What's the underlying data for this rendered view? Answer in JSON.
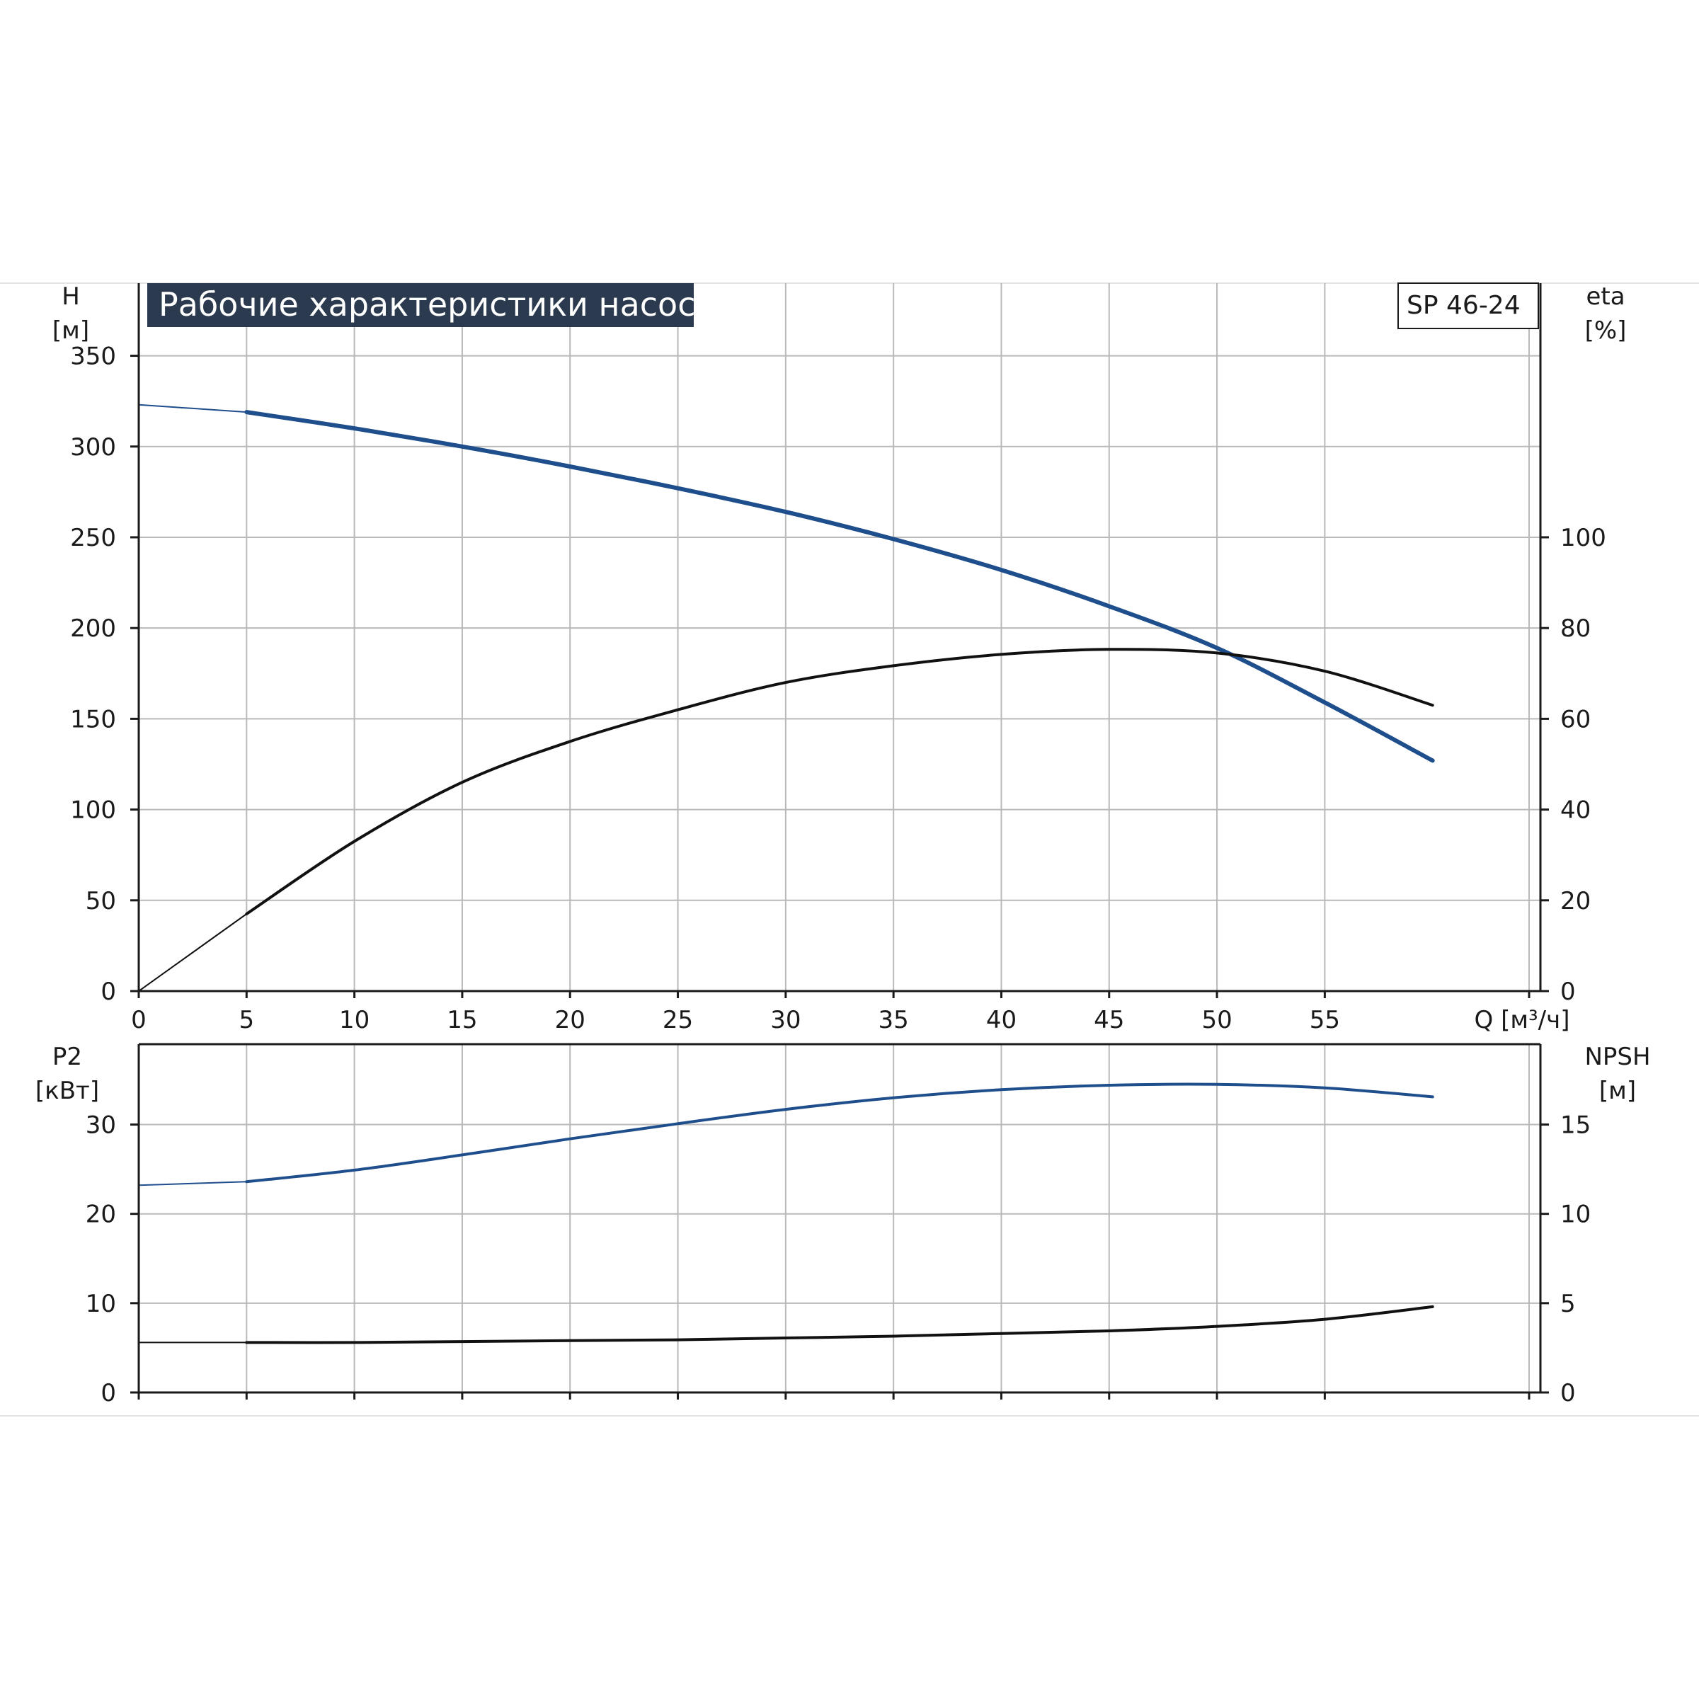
{
  "title": "Рабочие характеристики насоса",
  "model": "SP 46-24",
  "colors": {
    "blue": "#1f4e8c",
    "black": "#111111",
    "title_bg": "#2b3a4e",
    "grid": "#b9b9b9"
  },
  "chart_data": [
    {
      "type": "line",
      "x_label": "Q [м³/ч]",
      "y_left_label": [
        "H",
        "[м]"
      ],
      "y_right_label": [
        "eta",
        "[%]"
      ],
      "xlim": [
        0,
        65
      ],
      "ylim_left": [
        0,
        390
      ],
      "ylim_right": [
        0,
        156
      ],
      "x_ticks": [
        0,
        5,
        10,
        15,
        20,
        25,
        30,
        35,
        40,
        45,
        50,
        55
      ],
      "y_left_ticks": [
        0,
        50,
        100,
        150,
        200,
        250,
        300,
        350
      ],
      "y_right_ticks": [
        0,
        20,
        40,
        60,
        80,
        100
      ],
      "grid": true,
      "series": [
        {
          "axis": "left",
          "color": "#1f4e8c",
          "x": [
            0,
            5,
            10,
            15,
            20,
            25,
            30,
            35,
            40,
            45,
            50,
            55,
            60
          ],
          "y": [
            323,
            319,
            310,
            300,
            289,
            277,
            264,
            249,
            232,
            212,
            189,
            159,
            127
          ]
        },
        {
          "axis": "right",
          "color": "#111111",
          "x": [
            0,
            5,
            10,
            15,
            20,
            25,
            30,
            35,
            40,
            45,
            50,
            55,
            60
          ],
          "y": [
            0,
            17,
            33,
            46,
            55,
            62,
            68,
            71.7,
            74.2,
            75.3,
            74.5,
            70.5,
            63
          ]
        }
      ]
    },
    {
      "type": "line",
      "y_left_label": [
        "P2",
        "[кВт]"
      ],
      "y_right_label": [
        "NPSH",
        "[м]"
      ],
      "xlim": [
        0,
        65
      ],
      "ylim_left": [
        0,
        39
      ],
      "ylim_right": [
        0,
        19.5
      ],
      "y_left_ticks": [
        0,
        10,
        20,
        30
      ],
      "y_right_ticks": [
        0,
        5,
        10,
        15
      ],
      "grid": true,
      "series": [
        {
          "axis": "left",
          "color": "#1f4e8c",
          "x": [
            0,
            5,
            10,
            15,
            20,
            25,
            30,
            35,
            40,
            45,
            50,
            55,
            60
          ],
          "y": [
            23.2,
            23.6,
            24.9,
            26.6,
            28.4,
            30.1,
            31.7,
            33.0,
            33.9,
            34.4,
            34.5,
            34.1,
            33.1
          ]
        },
        {
          "axis": "right",
          "color": "#111111",
          "x": [
            0,
            5,
            10,
            15,
            20,
            25,
            30,
            35,
            40,
            45,
            50,
            55,
            60
          ],
          "y": [
            2.8,
            2.8,
            2.8,
            2.85,
            2.9,
            2.95,
            3.05,
            3.15,
            3.3,
            3.45,
            3.7,
            4.1,
            4.8
          ]
        }
      ]
    }
  ]
}
